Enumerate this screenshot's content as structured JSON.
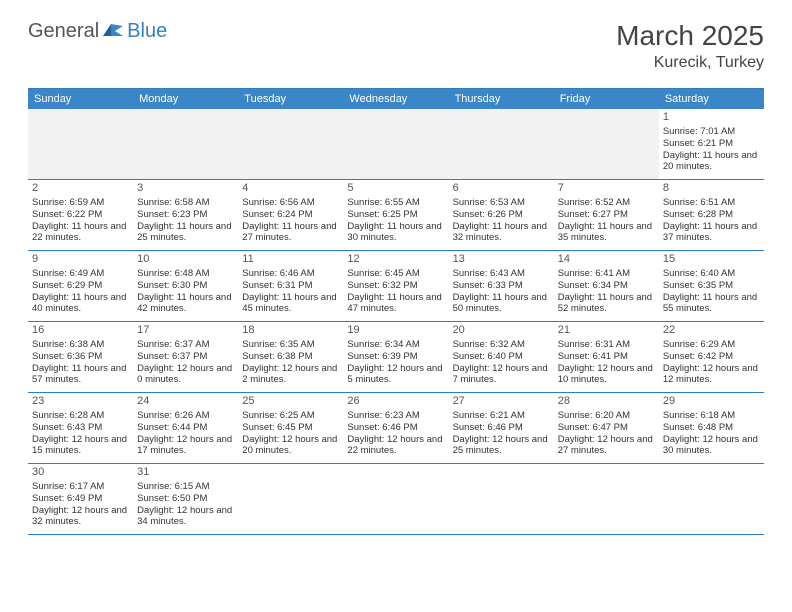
{
  "logo": {
    "general": "General",
    "blue": "Blue"
  },
  "title": "March 2025",
  "location": "Kurecik, Turkey",
  "day_headers": [
    "Sunday",
    "Monday",
    "Tuesday",
    "Wednesday",
    "Thursday",
    "Friday",
    "Saturday"
  ],
  "colors": {
    "header_bg": "#3a86c8",
    "border": "#2d7dc0",
    "blank_bg": "#f2f2f2",
    "text": "#333333",
    "logo_blue": "#3a7fbf"
  },
  "weeks": [
    [
      {
        "blank": true
      },
      {
        "blank": true
      },
      {
        "blank": true
      },
      {
        "blank": true
      },
      {
        "blank": true
      },
      {
        "blank": true
      },
      {
        "num": "1",
        "sunrise": "Sunrise: 7:01 AM",
        "sunset": "Sunset: 6:21 PM",
        "daylight": "Daylight: 11 hours and 20 minutes."
      }
    ],
    [
      {
        "num": "2",
        "sunrise": "Sunrise: 6:59 AM",
        "sunset": "Sunset: 6:22 PM",
        "daylight": "Daylight: 11 hours and 22 minutes."
      },
      {
        "num": "3",
        "sunrise": "Sunrise: 6:58 AM",
        "sunset": "Sunset: 6:23 PM",
        "daylight": "Daylight: 11 hours and 25 minutes."
      },
      {
        "num": "4",
        "sunrise": "Sunrise: 6:56 AM",
        "sunset": "Sunset: 6:24 PM",
        "daylight": "Daylight: 11 hours and 27 minutes."
      },
      {
        "num": "5",
        "sunrise": "Sunrise: 6:55 AM",
        "sunset": "Sunset: 6:25 PM",
        "daylight": "Daylight: 11 hours and 30 minutes."
      },
      {
        "num": "6",
        "sunrise": "Sunrise: 6:53 AM",
        "sunset": "Sunset: 6:26 PM",
        "daylight": "Daylight: 11 hours and 32 minutes."
      },
      {
        "num": "7",
        "sunrise": "Sunrise: 6:52 AM",
        "sunset": "Sunset: 6:27 PM",
        "daylight": "Daylight: 11 hours and 35 minutes."
      },
      {
        "num": "8",
        "sunrise": "Sunrise: 6:51 AM",
        "sunset": "Sunset: 6:28 PM",
        "daylight": "Daylight: 11 hours and 37 minutes."
      }
    ],
    [
      {
        "num": "9",
        "sunrise": "Sunrise: 6:49 AM",
        "sunset": "Sunset: 6:29 PM",
        "daylight": "Daylight: 11 hours and 40 minutes."
      },
      {
        "num": "10",
        "sunrise": "Sunrise: 6:48 AM",
        "sunset": "Sunset: 6:30 PM",
        "daylight": "Daylight: 11 hours and 42 minutes."
      },
      {
        "num": "11",
        "sunrise": "Sunrise: 6:46 AM",
        "sunset": "Sunset: 6:31 PM",
        "daylight": "Daylight: 11 hours and 45 minutes."
      },
      {
        "num": "12",
        "sunrise": "Sunrise: 6:45 AM",
        "sunset": "Sunset: 6:32 PM",
        "daylight": "Daylight: 11 hours and 47 minutes."
      },
      {
        "num": "13",
        "sunrise": "Sunrise: 6:43 AM",
        "sunset": "Sunset: 6:33 PM",
        "daylight": "Daylight: 11 hours and 50 minutes."
      },
      {
        "num": "14",
        "sunrise": "Sunrise: 6:41 AM",
        "sunset": "Sunset: 6:34 PM",
        "daylight": "Daylight: 11 hours and 52 minutes."
      },
      {
        "num": "15",
        "sunrise": "Sunrise: 6:40 AM",
        "sunset": "Sunset: 6:35 PM",
        "daylight": "Daylight: 11 hours and 55 minutes."
      }
    ],
    [
      {
        "num": "16",
        "sunrise": "Sunrise: 6:38 AM",
        "sunset": "Sunset: 6:36 PM",
        "daylight": "Daylight: 11 hours and 57 minutes."
      },
      {
        "num": "17",
        "sunrise": "Sunrise: 6:37 AM",
        "sunset": "Sunset: 6:37 PM",
        "daylight": "Daylight: 12 hours and 0 minutes."
      },
      {
        "num": "18",
        "sunrise": "Sunrise: 6:35 AM",
        "sunset": "Sunset: 6:38 PM",
        "daylight": "Daylight: 12 hours and 2 minutes."
      },
      {
        "num": "19",
        "sunrise": "Sunrise: 6:34 AM",
        "sunset": "Sunset: 6:39 PM",
        "daylight": "Daylight: 12 hours and 5 minutes."
      },
      {
        "num": "20",
        "sunrise": "Sunrise: 6:32 AM",
        "sunset": "Sunset: 6:40 PM",
        "daylight": "Daylight: 12 hours and 7 minutes."
      },
      {
        "num": "21",
        "sunrise": "Sunrise: 6:31 AM",
        "sunset": "Sunset: 6:41 PM",
        "daylight": "Daylight: 12 hours and 10 minutes."
      },
      {
        "num": "22",
        "sunrise": "Sunrise: 6:29 AM",
        "sunset": "Sunset: 6:42 PM",
        "daylight": "Daylight: 12 hours and 12 minutes."
      }
    ],
    [
      {
        "num": "23",
        "sunrise": "Sunrise: 6:28 AM",
        "sunset": "Sunset: 6:43 PM",
        "daylight": "Daylight: 12 hours and 15 minutes."
      },
      {
        "num": "24",
        "sunrise": "Sunrise: 6:26 AM",
        "sunset": "Sunset: 6:44 PM",
        "daylight": "Daylight: 12 hours and 17 minutes."
      },
      {
        "num": "25",
        "sunrise": "Sunrise: 6:25 AM",
        "sunset": "Sunset: 6:45 PM",
        "daylight": "Daylight: 12 hours and 20 minutes."
      },
      {
        "num": "26",
        "sunrise": "Sunrise: 6:23 AM",
        "sunset": "Sunset: 6:46 PM",
        "daylight": "Daylight: 12 hours and 22 minutes."
      },
      {
        "num": "27",
        "sunrise": "Sunrise: 6:21 AM",
        "sunset": "Sunset: 6:46 PM",
        "daylight": "Daylight: 12 hours and 25 minutes."
      },
      {
        "num": "28",
        "sunrise": "Sunrise: 6:20 AM",
        "sunset": "Sunset: 6:47 PM",
        "daylight": "Daylight: 12 hours and 27 minutes."
      },
      {
        "num": "29",
        "sunrise": "Sunrise: 6:18 AM",
        "sunset": "Sunset: 6:48 PM",
        "daylight": "Daylight: 12 hours and 30 minutes."
      }
    ],
    [
      {
        "num": "30",
        "sunrise": "Sunrise: 6:17 AM",
        "sunset": "Sunset: 6:49 PM",
        "daylight": "Daylight: 12 hours and 32 minutes."
      },
      {
        "num": "31",
        "sunrise": "Sunrise: 6:15 AM",
        "sunset": "Sunset: 6:50 PM",
        "daylight": "Daylight: 12 hours and 34 minutes."
      },
      {
        "blank": true
      },
      {
        "blank": true
      },
      {
        "blank": true
      },
      {
        "blank": true
      },
      {
        "blank": true
      }
    ]
  ]
}
